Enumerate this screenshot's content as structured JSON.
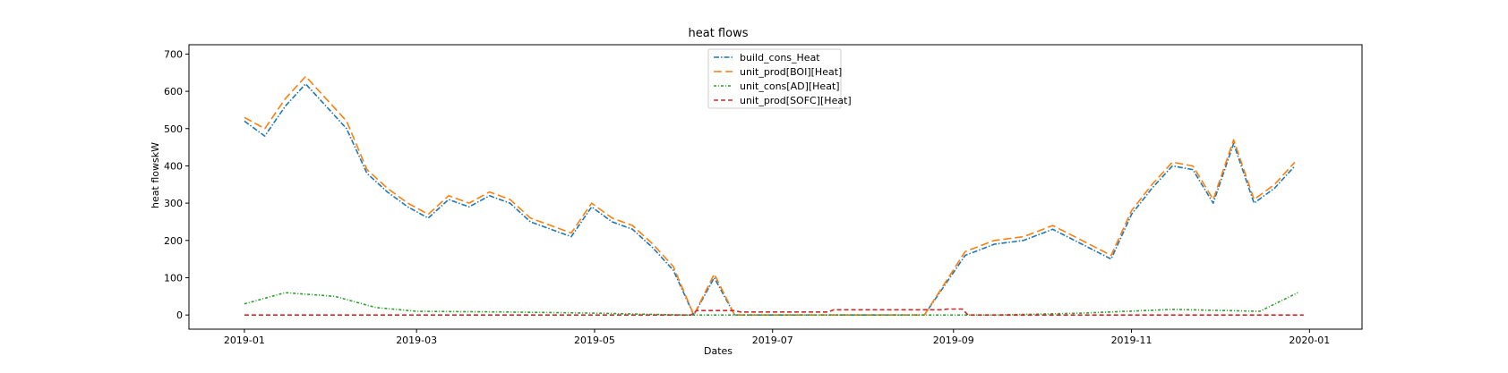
{
  "chart_data": {
    "type": "line",
    "title": "heat flows",
    "xlabel": "Dates",
    "ylabel": "heat flowskW",
    "xlim": [
      "2018-12-13",
      "2020-01-19"
    ],
    "ylim": [
      -38,
      725
    ],
    "x_ticks": [
      "2019-01",
      "2019-03",
      "2019-05",
      "2019-07",
      "2019-09",
      "2019-11",
      "2020-01"
    ],
    "y_ticks": [
      0,
      100,
      200,
      300,
      400,
      500,
      600,
      700
    ],
    "legend_position": "upper center",
    "grid": false,
    "series": [
      {
        "name": "build_cons_Heat",
        "color": "#1f77b4",
        "style": "dashdot",
        "points": [
          [
            "2019-01-01",
            520
          ],
          [
            "2019-01-08",
            480
          ],
          [
            "2019-01-15",
            560
          ],
          [
            "2019-01-22",
            620
          ],
          [
            "2019-01-29",
            560
          ],
          [
            "2019-02-05",
            500
          ],
          [
            "2019-02-12",
            380
          ],
          [
            "2019-02-19",
            330
          ],
          [
            "2019-02-26",
            290
          ],
          [
            "2019-03-05",
            260
          ],
          [
            "2019-03-12",
            310
          ],
          [
            "2019-03-19",
            290
          ],
          [
            "2019-03-26",
            320
          ],
          [
            "2019-04-02",
            300
          ],
          [
            "2019-04-09",
            250
          ],
          [
            "2019-04-16",
            230
          ],
          [
            "2019-04-23",
            210
          ],
          [
            "2019-04-30",
            290
          ],
          [
            "2019-05-07",
            250
          ],
          [
            "2019-05-14",
            230
          ],
          [
            "2019-05-21",
            180
          ],
          [
            "2019-05-28",
            120
          ],
          [
            "2019-06-04",
            0
          ],
          [
            "2019-06-11",
            100
          ],
          [
            "2019-06-18",
            0
          ],
          [
            "2019-07-01",
            0
          ],
          [
            "2019-08-01",
            0
          ],
          [
            "2019-08-22",
            0
          ],
          [
            "2019-09-05",
            160
          ],
          [
            "2019-09-15",
            190
          ],
          [
            "2019-09-25",
            200
          ],
          [
            "2019-10-05",
            230
          ],
          [
            "2019-10-15",
            190
          ],
          [
            "2019-10-25",
            150
          ],
          [
            "2019-11-01",
            270
          ],
          [
            "2019-11-08",
            340
          ],
          [
            "2019-11-15",
            400
          ],
          [
            "2019-11-22",
            390
          ],
          [
            "2019-11-29",
            300
          ],
          [
            "2019-12-06",
            460
          ],
          [
            "2019-12-13",
            300
          ],
          [
            "2019-12-20",
            340
          ],
          [
            "2019-12-27",
            400
          ]
        ]
      },
      {
        "name": "unit_prod[BOI][Heat]",
        "color": "#ff7f0e",
        "style": "dashed-long",
        "points": [
          [
            "2019-01-01",
            530
          ],
          [
            "2019-01-08",
            500
          ],
          [
            "2019-01-15",
            580
          ],
          [
            "2019-01-22",
            640
          ],
          [
            "2019-01-29",
            580
          ],
          [
            "2019-02-05",
            520
          ],
          [
            "2019-02-12",
            390
          ],
          [
            "2019-02-19",
            340
          ],
          [
            "2019-02-26",
            300
          ],
          [
            "2019-03-05",
            270
          ],
          [
            "2019-03-12",
            320
          ],
          [
            "2019-03-19",
            300
          ],
          [
            "2019-03-26",
            330
          ],
          [
            "2019-04-02",
            310
          ],
          [
            "2019-04-09",
            260
          ],
          [
            "2019-04-16",
            240
          ],
          [
            "2019-04-23",
            220
          ],
          [
            "2019-04-30",
            300
          ],
          [
            "2019-05-07",
            260
          ],
          [
            "2019-05-14",
            240
          ],
          [
            "2019-05-21",
            190
          ],
          [
            "2019-05-28",
            130
          ],
          [
            "2019-06-04",
            0
          ],
          [
            "2019-06-11",
            110
          ],
          [
            "2019-06-18",
            0
          ],
          [
            "2019-07-01",
            0
          ],
          [
            "2019-08-01",
            0
          ],
          [
            "2019-08-22",
            0
          ],
          [
            "2019-09-05",
            170
          ],
          [
            "2019-09-15",
            200
          ],
          [
            "2019-09-25",
            210
          ],
          [
            "2019-10-05",
            240
          ],
          [
            "2019-10-15",
            200
          ],
          [
            "2019-10-25",
            160
          ],
          [
            "2019-11-01",
            280
          ],
          [
            "2019-11-08",
            350
          ],
          [
            "2019-11-15",
            410
          ],
          [
            "2019-11-22",
            400
          ],
          [
            "2019-11-29",
            310
          ],
          [
            "2019-12-06",
            470
          ],
          [
            "2019-12-13",
            310
          ],
          [
            "2019-12-20",
            350
          ],
          [
            "2019-12-27",
            410
          ]
        ]
      },
      {
        "name": "unit_cons[AD][Heat]",
        "color": "#2ca02c",
        "style": "dashdot-dense",
        "points": [
          [
            "2019-01-01",
            30
          ],
          [
            "2019-01-15",
            60
          ],
          [
            "2019-02-01",
            50
          ],
          [
            "2019-02-15",
            20
          ],
          [
            "2019-03-01",
            10
          ],
          [
            "2019-04-01",
            8
          ],
          [
            "2019-05-01",
            5
          ],
          [
            "2019-06-01",
            0
          ],
          [
            "2019-09-15",
            0
          ],
          [
            "2019-10-15",
            5
          ],
          [
            "2019-11-15",
            15
          ],
          [
            "2019-12-15",
            10
          ],
          [
            "2019-12-28",
            60
          ]
        ]
      },
      {
        "name": "unit_prod[SOFC][Heat]",
        "color": "#d62728",
        "style": "dashed",
        "points": [
          [
            "2019-01-01",
            0
          ],
          [
            "2019-06-03",
            0
          ],
          [
            "2019-06-05",
            12
          ],
          [
            "2019-06-18",
            12
          ],
          [
            "2019-06-20",
            8
          ],
          [
            "2019-07-20",
            8
          ],
          [
            "2019-07-22",
            14
          ],
          [
            "2019-08-28",
            14
          ],
          [
            "2019-08-30",
            16
          ],
          [
            "2019-09-04",
            16
          ],
          [
            "2019-09-06",
            0
          ],
          [
            "2019-12-30",
            0
          ]
        ]
      }
    ]
  }
}
